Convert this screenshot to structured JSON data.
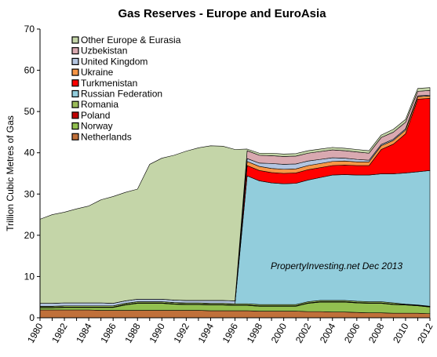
{
  "chart_data": {
    "type": "area",
    "stacked": true,
    "title": "Gas Reserves - Europe and EuroAsia",
    "ylabel": "Trillion Cubic Metres of Gas",
    "xlabel": "",
    "ylim": [
      0,
      70
    ],
    "yticks": [
      "0",
      "10",
      "20",
      "30",
      "40",
      "50",
      "60",
      "70"
    ],
    "xticks": [
      "1980",
      "1982",
      "1984",
      "1986",
      "1988",
      "1990",
      "1992",
      "1994",
      "1996",
      "1998",
      "2000",
      "2002",
      "2004",
      "2006",
      "2008",
      "2010",
      "2012"
    ],
    "grid": false,
    "legend_position": "top-left",
    "annotation": "PropertyInvesting.net  Dec 2013",
    "x": [
      1980,
      1981,
      1982,
      1983,
      1984,
      1985,
      1986,
      1987,
      1988,
      1989,
      1990,
      1991,
      1992,
      1993,
      1994,
      1995,
      1996,
      1997,
      1998,
      1999,
      2000,
      2001,
      2002,
      2003,
      2004,
      2005,
      2006,
      2007,
      2008,
      2009,
      2010,
      2011,
      2012
    ],
    "series": [
      {
        "name": "Netherlands",
        "color": "#C0703A",
        "values": [
          1.9,
          1.9,
          1.9,
          1.9,
          1.9,
          1.8,
          1.8,
          1.8,
          1.8,
          1.8,
          1.8,
          1.8,
          1.8,
          1.8,
          1.7,
          1.7,
          1.7,
          1.7,
          1.6,
          1.6,
          1.6,
          1.6,
          1.5,
          1.5,
          1.4,
          1.4,
          1.3,
          1.2,
          1.2,
          1.1,
          1.1,
          1.1,
          1.0
        ]
      },
      {
        "name": "Norway",
        "color": "#92C050",
        "values": [
          0.5,
          0.5,
          0.6,
          0.6,
          0.6,
          0.7,
          0.7,
          1.3,
          1.7,
          1.7,
          1.7,
          1.5,
          1.4,
          1.4,
          1.4,
          1.4,
          1.3,
          1.3,
          1.2,
          1.2,
          1.2,
          1.2,
          2.0,
          2.3,
          2.4,
          2.4,
          2.3,
          2.3,
          2.3,
          2.1,
          2.0,
          1.8,
          1.6
        ]
      },
      {
        "name": "Poland",
        "color": "#C00000",
        "values": [
          0.1,
          0.1,
          0.1,
          0.1,
          0.1,
          0.1,
          0.1,
          0.1,
          0.1,
          0.1,
          0.1,
          0.1,
          0.1,
          0.1,
          0.1,
          0.1,
          0.1,
          0.1,
          0.1,
          0.1,
          0.1,
          0.1,
          0.1,
          0.1,
          0.1,
          0.1,
          0.1,
          0.1,
          0.1,
          0.1,
          0.1,
          0.1,
          0.1
        ]
      },
      {
        "name": "Romania",
        "color": "#9BBB59",
        "values": [
          0.3,
          0.3,
          0.3,
          0.3,
          0.3,
          0.3,
          0.3,
          0.3,
          0.3,
          0.3,
          0.3,
          0.3,
          0.3,
          0.3,
          0.3,
          0.3,
          0.3,
          0.3,
          0.3,
          0.3,
          0.3,
          0.3,
          0.3,
          0.3,
          0.3,
          0.3,
          0.3,
          0.3,
          0.3,
          0.3,
          0.1,
          0.1,
          0.1
        ]
      },
      {
        "name": "Russian Federation",
        "color": "#92CDDC",
        "values": [
          0.0,
          0.0,
          0.0,
          0.0,
          0.0,
          0.0,
          0.0,
          0.0,
          0.0,
          0.0,
          0.0,
          0.0,
          0.0,
          0.0,
          0.0,
          0.0,
          0.0,
          31.0,
          30.0,
          29.5,
          29.3,
          29.4,
          29.5,
          29.8,
          30.4,
          30.5,
          30.6,
          30.7,
          31.0,
          31.3,
          31.8,
          32.3,
          32.9
        ]
      },
      {
        "name": "Turkmenistan",
        "color": "#FF0000",
        "values": [
          0.0,
          0.0,
          0.0,
          0.0,
          0.0,
          0.0,
          0.0,
          0.0,
          0.0,
          0.0,
          0.0,
          0.0,
          0.0,
          0.0,
          0.0,
          0.0,
          0.0,
          2.5,
          2.5,
          2.5,
          2.5,
          2.5,
          2.5,
          2.4,
          2.3,
          2.3,
          2.3,
          2.3,
          5.9,
          7.2,
          9.5,
          17.6,
          17.5
        ]
      },
      {
        "name": "Ukraine",
        "color": "#F79646",
        "values": [
          0.0,
          0.0,
          0.0,
          0.0,
          0.0,
          0.0,
          0.0,
          0.0,
          0.0,
          0.0,
          0.0,
          0.0,
          0.0,
          0.0,
          0.0,
          0.0,
          0.0,
          1.0,
          1.0,
          1.0,
          1.0,
          1.0,
          1.0,
          1.0,
          1.0,
          1.0,
          0.9,
          0.9,
          0.9,
          0.9,
          0.9,
          0.6,
          0.6
        ]
      },
      {
        "name": "United Kingdom",
        "color": "#B3C5E0",
        "values": [
          0.7,
          0.7,
          0.7,
          0.7,
          0.7,
          0.7,
          0.6,
          0.6,
          0.6,
          0.6,
          0.6,
          0.6,
          0.6,
          0.6,
          0.7,
          0.7,
          0.7,
          0.7,
          0.8,
          1.2,
          1.2,
          1.2,
          1.1,
          1.0,
          0.9,
          0.7,
          0.6,
          0.4,
          0.3,
          0.3,
          0.3,
          0.2,
          0.2
        ]
      },
      {
        "name": "Uzbekistan",
        "color": "#D9A9B0",
        "values": [
          0.0,
          0.0,
          0.0,
          0.0,
          0.0,
          0.0,
          0.0,
          0.0,
          0.0,
          0.0,
          0.0,
          0.0,
          0.0,
          0.0,
          0.0,
          0.0,
          0.0,
          1.9,
          1.9,
          1.9,
          1.9,
          1.9,
          1.9,
          1.9,
          1.9,
          1.8,
          1.8,
          1.7,
          1.7,
          1.7,
          1.6,
          1.1,
          1.1
        ]
      },
      {
        "name": "Other Europe & Eurasia",
        "color": "#C4D5A8",
        "values": [
          20.4,
          21.5,
          22.0,
          22.8,
          23.5,
          25.0,
          25.9,
          26.3,
          26.7,
          32.7,
          34.2,
          35.1,
          36.2,
          37.0,
          37.5,
          37.4,
          36.7,
          0.4,
          0.5,
          0.6,
          0.6,
          0.6,
          0.6,
          0.6,
          0.6,
          0.6,
          0.6,
          0.6,
          0.6,
          0.7,
          0.7,
          0.7,
          0.7
        ]
      }
    ]
  }
}
